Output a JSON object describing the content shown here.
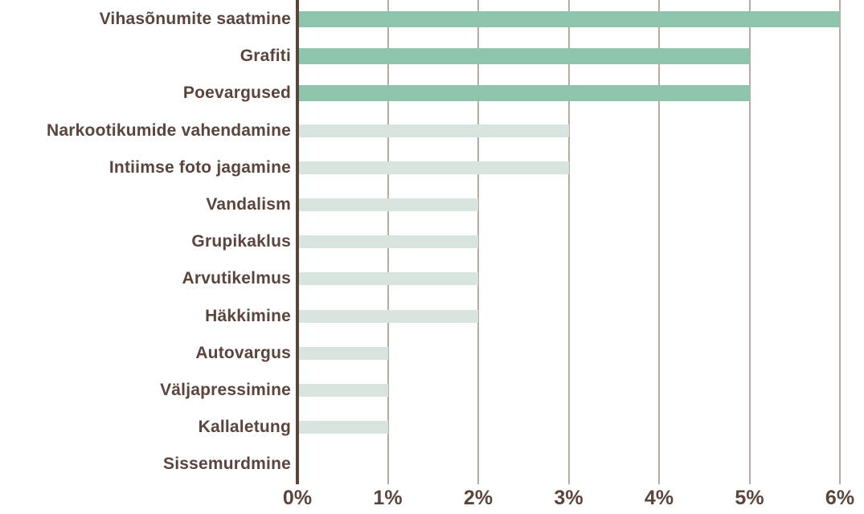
{
  "chart_data": {
    "type": "bar",
    "orientation": "horizontal",
    "title": "",
    "categories": [
      "Vihasõnumite saatmine",
      "Grafiti",
      "Poevargused",
      "Narkootikumide vahendamine",
      "Intiimse foto jagamine",
      "Vandalism",
      "Grupikaklus",
      "Arvutikelmus",
      "Häkkimine",
      "Autovargus",
      "Väljapressimine",
      "Kallaletung",
      "Sissemurdmine"
    ],
    "values": [
      6,
      5,
      5,
      3,
      3,
      2,
      2,
      2,
      2,
      1,
      1,
      1,
      0
    ],
    "value_unit": "%",
    "highlighted": [
      true,
      true,
      true,
      false,
      false,
      false,
      false,
      false,
      false,
      false,
      false,
      false,
      false
    ],
    "x_ticks": [
      "0%",
      "1%",
      "2%",
      "3%",
      "4%",
      "5%",
      "6%"
    ],
    "xlim": [
      0,
      6
    ],
    "grid": "vertical-gridlines",
    "legend": "none",
    "colors": {
      "bar_highlight": "#8fc5ad",
      "bar_normal": "#d7e5de",
      "axis_line": "#5b443c",
      "gridline": "#b9aba4",
      "label_text": "#5b443c"
    }
  }
}
